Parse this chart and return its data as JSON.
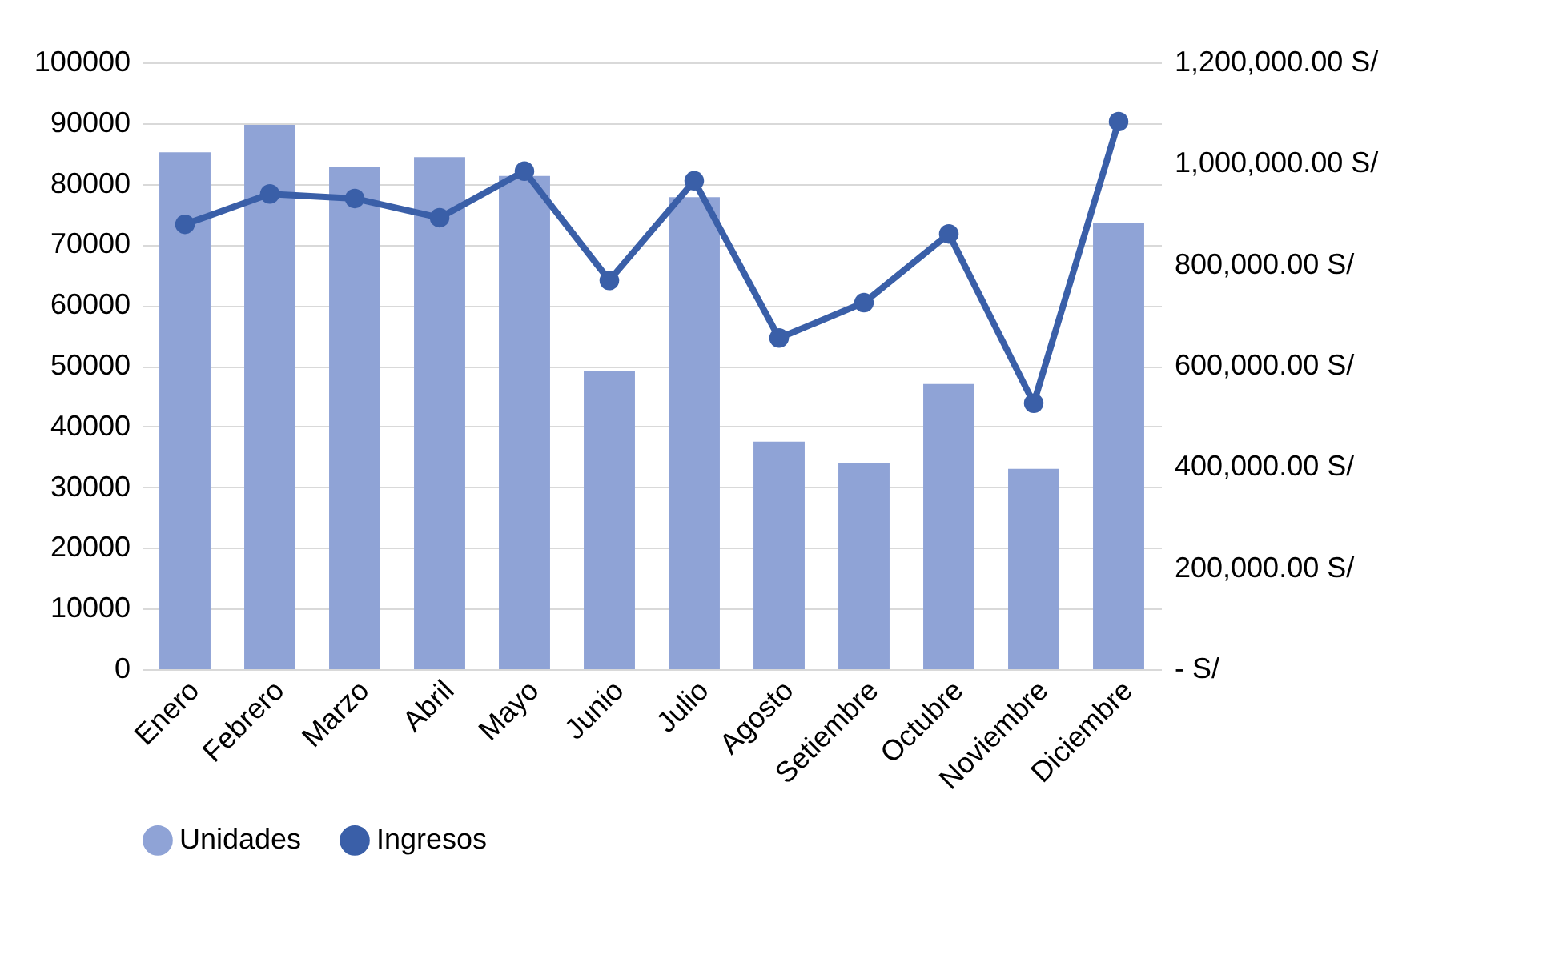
{
  "chart_data": {
    "type": "bar",
    "categories": [
      "Enero",
      "Febrero",
      "Marzo",
      "Abril",
      "Mayo",
      "Junio",
      "Julio",
      "Agosto",
      "Setiembre",
      "Octubre",
      "Noviembre",
      "Diciembre"
    ],
    "series": [
      {
        "name": "Unidades",
        "color": "#8fa3d6",
        "values": [
          85200,
          89700,
          82800,
          84400,
          81300,
          49100,
          77800,
          37500,
          34000,
          47000,
          33000,
          73600
        ]
      },
      {
        "name": "Ingresos",
        "type": "line",
        "axis": "y2",
        "color": "#3a5fa8",
        "values": [
          880000,
          940000,
          931000,
          893000,
          985000,
          769000,
          966000,
          655000,
          725000,
          861000,
          526000,
          1083000
        ]
      }
    ],
    "ylim": [
      0,
      100000
    ],
    "yticks": [
      0,
      10000,
      20000,
      30000,
      40000,
      50000,
      60000,
      70000,
      80000,
      90000,
      100000
    ],
    "y2lim": [
      0,
      1200000
    ],
    "y2ticks": [
      {
        "value": 0,
        "label": "-   S/"
      },
      {
        "value": 200000,
        "label": "200,000.00 S/"
      },
      {
        "value": 400000,
        "label": "400,000.00 S/"
      },
      {
        "value": 600000,
        "label": "600,000.00 S/"
      },
      {
        "value": 800000,
        "label": "800,000.00 S/"
      },
      {
        "value": 1000000,
        "label": "1,000,000.00 S/"
      },
      {
        "value": 1200000,
        "label": "1,200,000.00 S/"
      }
    ],
    "grid": "y",
    "legend": "bottom",
    "marker": "circle"
  }
}
